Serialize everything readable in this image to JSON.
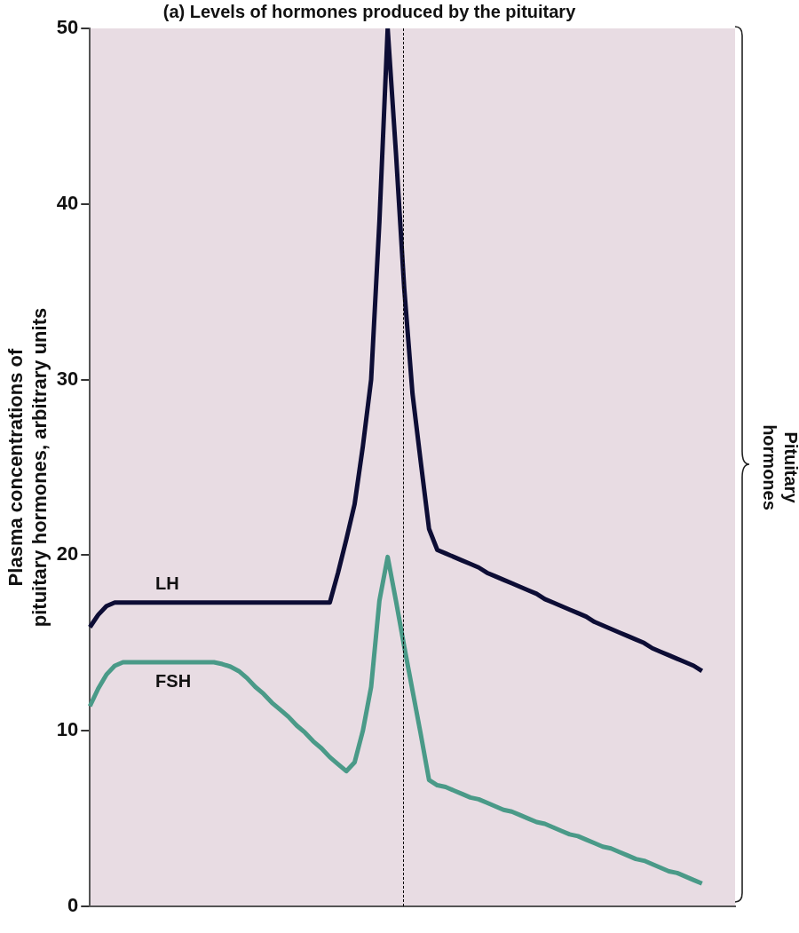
{
  "chart_data": {
    "type": "line",
    "title": "(a) Levels of hormones produced by the pituitary",
    "ylabel": "Plasma concentrations of\npituitary hormones, arbitrary units",
    "categories": [
      null,
      null,
      null,
      null,
      null,
      null,
      null,
      null,
      null,
      null,
      null,
      null,
      null,
      null,
      null,
      null,
      null,
      null,
      null,
      null,
      null,
      null,
      null,
      null,
      null,
      null,
      null,
      null,
      null,
      null,
      null,
      null,
      null,
      null,
      null,
      null,
      null,
      null,
      null,
      null,
      null,
      null,
      null,
      null,
      null,
      null,
      null,
      null,
      null,
      null,
      null,
      null,
      null,
      null,
      null,
      null,
      null,
      null,
      null,
      null,
      null,
      null,
      null,
      null,
      null,
      null,
      null,
      null,
      null,
      null,
      null,
      null,
      null,
      null,
      null,
      null,
      null,
      null,
      null
    ],
    "series": [
      {
        "name": "LH",
        "color": "#0d0d35",
        "values": [
          15.9,
          16.6,
          17.1,
          17.3,
          17.3,
          17.3,
          17.3,
          17.3,
          17.3,
          17.3,
          17.3,
          17.3,
          17.3,
          17.3,
          17.3,
          17.3,
          17.3,
          17.3,
          17.3,
          17.3,
          17.3,
          17.3,
          17.3,
          17.3,
          17.3,
          17.3,
          17.3,
          17.3,
          17.3,
          17.3,
          19.0,
          20.9,
          22.9,
          26.2,
          30,
          39,
          50,
          42.9,
          35.2,
          29.2,
          25.3,
          21.5,
          20.3,
          20.1,
          19.9,
          19.7,
          19.5,
          19.3,
          19.0,
          18.8,
          18.6,
          18.4,
          18.2,
          18.0,
          17.8,
          17.5,
          17.3,
          17.1,
          16.9,
          16.7,
          16.5,
          16.2,
          16.0,
          15.8,
          15.6,
          15.4,
          15.2,
          15.0,
          14.7,
          14.5,
          14.3,
          14.1,
          13.9,
          13.7,
          13.4,
          null,
          null,
          null,
          null
        ]
      },
      {
        "name": "FSH",
        "color": "#4a9a88",
        "values": [
          11.4,
          12.4,
          13.2,
          13.7,
          13.9,
          13.9,
          13.9,
          13.9,
          13.9,
          13.9,
          13.9,
          13.9,
          13.9,
          13.9,
          13.9,
          13.9,
          13.8,
          13.65,
          13.4,
          13.0,
          12.5,
          12.1,
          11.6,
          11.2,
          10.8,
          10.3,
          9.9,
          9.4,
          9.0,
          8.5,
          8.1,
          7.7,
          8.2,
          10.0,
          12.5,
          17.4,
          19.9,
          17.4,
          14.8,
          12.3,
          9.8,
          7.2,
          6.9,
          6.8,
          6.6,
          6.4,
          6.2,
          6.1,
          5.9,
          5.7,
          5.5,
          5.4,
          5.2,
          5.0,
          4.8,
          4.7,
          4.5,
          4.3,
          4.1,
          4.0,
          3.8,
          3.6,
          3.4,
          3.3,
          3.1,
          2.9,
          2.7,
          2.6,
          2.4,
          2.2,
          2.0,
          1.9,
          1.7,
          1.5,
          1.3,
          null,
          null,
          null,
          null
        ]
      }
    ],
    "ylim": [
      0,
      50
    ],
    "yticks": [
      0,
      10,
      20,
      30,
      40,
      50
    ],
    "grid": false,
    "legend": false,
    "marker": "none",
    "line_style": "solid",
    "tick_labels": "y",
    "annotations": [
      "Pituitary hormones"
    ]
  }
}
